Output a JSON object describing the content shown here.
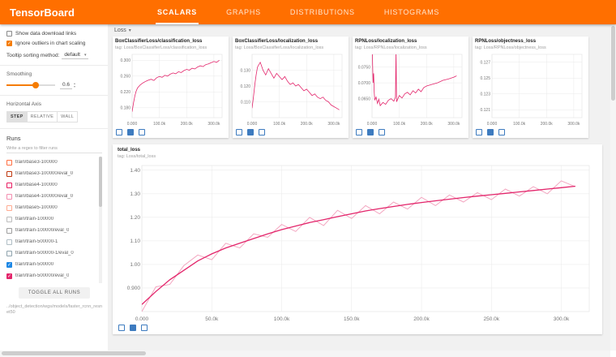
{
  "header": {
    "title": "TensorBoard",
    "tabs": [
      {
        "label": "SCALARS",
        "active": true
      },
      {
        "label": "GRAPHS",
        "active": false
      },
      {
        "label": "DISTRIBUTIONS",
        "active": false
      },
      {
        "label": "HISTOGRAMS",
        "active": false
      }
    ]
  },
  "sidebar": {
    "checkboxes": [
      {
        "label": "Show data download links",
        "checked": false
      },
      {
        "label": "Ignore outliers in chart scaling",
        "checked": true
      }
    ],
    "tooltip_sorting": {
      "label": "Tooltip sorting method:",
      "value": "default"
    },
    "smoothing": {
      "label": "Smoothing",
      "value": "0.6"
    },
    "horizontal_axis": {
      "label": "Horizontal Axis",
      "options": [
        "STEP",
        "RELATIVE",
        "WALL"
      ],
      "selected": "STEP"
    },
    "runs": {
      "label": "Runs",
      "filter_placeholder": "Write a regex to filter runs",
      "toggle_all_label": "TOGGLE ALL RUNS",
      "items": [
        {
          "label": "train/base3-100000",
          "checked": false,
          "color": "#ff7043"
        },
        {
          "label": "train/base3-100000/eval_0",
          "checked": false,
          "color": "#bf360c"
        },
        {
          "label": "train/base4-100000",
          "checked": false,
          "color": "#e91e63"
        },
        {
          "label": "train/base4-100000/eval_0",
          "checked": false,
          "color": "#f48fb1"
        },
        {
          "label": "train/base5-100000",
          "checked": false,
          "color": "#ffab91"
        },
        {
          "label": "train/train-100000",
          "checked": false,
          "color": "#bdbdbd"
        },
        {
          "label": "train/train-100000/eval_0",
          "checked": false,
          "color": "#9e9e9e"
        },
        {
          "label": "train/train-500000-1",
          "checked": false,
          "color": "#b0bec5"
        },
        {
          "label": "train/train-500000-1/eval_0",
          "checked": false,
          "color": "#90a4ae"
        },
        {
          "label": "train/train-500000",
          "checked": true,
          "color": "#1e88e5"
        },
        {
          "label": "train/train-500000/eval_0",
          "checked": true,
          "color": "#e3256b"
        }
      ]
    },
    "footer": "../object_detection/wgs/models/faster_rcnn_resnet50"
  },
  "main": {
    "group_label": "Loss",
    "chart_icons": [
      "fullscreen-icon",
      "log-y-axis-icon",
      "pin-icon"
    ]
  },
  "icons": {
    "dropdown_caret": "▾",
    "group_caret": "▾",
    "spinner_up": "▴",
    "spinner_down": "▾",
    "check": "✓"
  },
  "colors": {
    "accent": "#ff6f00",
    "line": "#e3256b",
    "line_raw": "#f3a6c0",
    "icon_blue": "#3d7bbf"
  },
  "chart_data": [
    {
      "size": "small",
      "type": "line",
      "title": "BoxClassifierLoss/classification_loss",
      "tag": "tag: Loss/BoxClassifierLoss/classification_loss",
      "xlim": [
        0,
        330000
      ],
      "ylim": [
        0.155,
        0.315
      ],
      "xticks": [
        {
          "v": 0,
          "l": "0.000"
        },
        {
          "v": 100000,
          "l": "100.0k"
        },
        {
          "v": 200000,
          "l": "200.0k"
        },
        {
          "v": 300000,
          "l": "300.0k"
        }
      ],
      "yticks": [
        {
          "v": 0.18,
          "l": "0.180"
        },
        {
          "v": 0.22,
          "l": "0.220"
        },
        {
          "v": 0.26,
          "l": "0.260"
        },
        {
          "v": 0.3,
          "l": "0.300"
        }
      ],
      "series": [
        {
          "name": "train/train-500000/eval_0",
          "color": "#e3256b",
          "width": 0.8,
          "x": [
            0,
            5000,
            10000,
            15000,
            20000,
            30000,
            40000,
            50000,
            60000,
            70000,
            80000,
            90000,
            100000,
            110000,
            120000,
            130000,
            140000,
            150000,
            160000,
            170000,
            180000,
            190000,
            200000,
            210000,
            220000,
            230000,
            240000,
            250000,
            260000,
            270000,
            280000,
            290000,
            300000,
            310000,
            320000
          ],
          "y": [
            0.17,
            0.192,
            0.21,
            0.222,
            0.23,
            0.238,
            0.243,
            0.247,
            0.25,
            0.252,
            0.249,
            0.256,
            0.259,
            0.257,
            0.262,
            0.26,
            0.265,
            0.268,
            0.266,
            0.271,
            0.269,
            0.274,
            0.277,
            0.275,
            0.28,
            0.278,
            0.283,
            0.286,
            0.284,
            0.289,
            0.291,
            0.294,
            0.297,
            0.295,
            0.3
          ]
        }
      ]
    },
    {
      "size": "small",
      "type": "line",
      "title": "BoxClassifierLoss/localization_loss",
      "tag": "tag: Loss/BoxClassifierLoss/localization_loss",
      "xlim": [
        0,
        330000
      ],
      "ylim": [
        0.1,
        0.14
      ],
      "xticks": [
        {
          "v": 0,
          "l": "0.000"
        },
        {
          "v": 100000,
          "l": "100.0k"
        },
        {
          "v": 200000,
          "l": "200.0k"
        },
        {
          "v": 300000,
          "l": "300.0k"
        }
      ],
      "yticks": [
        {
          "v": 0.11,
          "l": "0.110"
        },
        {
          "v": 0.12,
          "l": "0.120"
        },
        {
          "v": 0.13,
          "l": "0.130"
        }
      ],
      "series": [
        {
          "name": "train/train-500000/eval_0",
          "color": "#e3256b",
          "width": 0.8,
          "x": [
            0,
            5000,
            10000,
            15000,
            20000,
            30000,
            40000,
            50000,
            60000,
            70000,
            80000,
            90000,
            100000,
            110000,
            120000,
            130000,
            140000,
            150000,
            160000,
            170000,
            180000,
            190000,
            200000,
            210000,
            220000,
            230000,
            240000,
            250000,
            260000,
            270000,
            280000,
            290000,
            300000,
            310000,
            320000
          ],
          "y": [
            0.106,
            0.113,
            0.121,
            0.127,
            0.132,
            0.135,
            0.13,
            0.127,
            0.131,
            0.128,
            0.125,
            0.128,
            0.126,
            0.124,
            0.126,
            0.123,
            0.121,
            0.122,
            0.12,
            0.121,
            0.119,
            0.117,
            0.118,
            0.116,
            0.114,
            0.115,
            0.113,
            0.112,
            0.113,
            0.111,
            0.11,
            0.108,
            0.107,
            0.106,
            0.105
          ]
        }
      ]
    },
    {
      "size": "small",
      "type": "line",
      "title": "RPNLoss/localization_loss",
      "tag": "tag: Loss/RPNLoss/localization_loss",
      "xlim": [
        0,
        330000
      ],
      "ylim": [
        0.059,
        0.079
      ],
      "xticks": [
        {
          "v": 0,
          "l": "0.000"
        },
        {
          "v": 100000,
          "l": "100.0k"
        },
        {
          "v": 200000,
          "l": "200.0k"
        },
        {
          "v": 300000,
          "l": "300.0k"
        }
      ],
      "yticks": [
        {
          "v": 0.065,
          "l": "0.0650"
        },
        {
          "v": 0.07,
          "l": "0.0700"
        },
        {
          "v": 0.075,
          "l": "0.0750"
        }
      ],
      "series": [
        {
          "name": "train/train-500000/eval_0",
          "color": "#e3256b",
          "width": 0.8,
          "x": [
            0,
            2000,
            4000,
            6000,
            8000,
            10000,
            15000,
            20000,
            25000,
            30000,
            40000,
            50000,
            60000,
            70000,
            80000,
            86000,
            88000,
            90000,
            100000,
            110000,
            120000,
            130000,
            140000,
            150000,
            160000,
            170000,
            180000,
            190000,
            200000,
            220000,
            240000,
            260000,
            280000,
            300000,
            310000
          ],
          "y": [
            0.088,
            0.076,
            0.07,
            0.073,
            0.067,
            0.0645,
            0.0655,
            0.0635,
            0.0648,
            0.0628,
            0.0638,
            0.0632,
            0.0645,
            0.065,
            0.0642,
            0.0655,
            0.08,
            0.064,
            0.066,
            0.0652,
            0.0665,
            0.067,
            0.0662,
            0.0675,
            0.0668,
            0.068,
            0.0672,
            0.0685,
            0.069,
            0.0695,
            0.07,
            0.0708,
            0.0712,
            0.0718,
            0.0722
          ]
        }
      ]
    },
    {
      "size": "small",
      "type": "line",
      "title": "RPNLoss/objectness_loss",
      "tag": "tag: Loss/RPNLoss/objectness_loss",
      "xlim": [
        0,
        330000
      ],
      "ylim": [
        0.12,
        0.128
      ],
      "xticks": [
        {
          "v": 0,
          "l": "0.000"
        },
        {
          "v": 100000,
          "l": "100.0k"
        },
        {
          "v": 200000,
          "l": "200.0k"
        },
        {
          "v": 300000,
          "l": "300.0k"
        }
      ],
      "yticks": [
        {
          "v": 0.121,
          "l": "0.121"
        },
        {
          "v": 0.123,
          "l": "0.123"
        },
        {
          "v": 0.125,
          "l": "0.125"
        },
        {
          "v": 0.127,
          "l": "0.127"
        }
      ],
      "series": []
    },
    {
      "size": "big",
      "type": "line",
      "title": "total_loss",
      "tag": "tag: Loss/total_loss",
      "xlim": [
        0,
        320000
      ],
      "ylim": [
        0.8,
        1.42
      ],
      "xticks": [
        {
          "v": 0,
          "l": "0.000"
        },
        {
          "v": 50000,
          "l": "50.0k"
        },
        {
          "v": 100000,
          "l": "100.0k"
        },
        {
          "v": 150000,
          "l": "150.0k"
        },
        {
          "v": 200000,
          "l": "200.0k"
        },
        {
          "v": 250000,
          "l": "250.0k"
        },
        {
          "v": 300000,
          "l": "300.0k"
        }
      ],
      "yticks": [
        {
          "v": 0.9,
          "l": "0.900"
        },
        {
          "v": 1.0,
          "l": "1.00"
        },
        {
          "v": 1.1,
          "l": "1.10"
        },
        {
          "v": 1.2,
          "l": "1.20"
        },
        {
          "v": 1.3,
          "l": "1.30"
        },
        {
          "v": 1.4,
          "l": "1.40"
        }
      ],
      "series": [
        {
          "name": "train/train-500000/eval_0 (raw)",
          "color": "#f3a6c0",
          "width": 1,
          "x": [
            0,
            10000,
            20000,
            30000,
            40000,
            50000,
            60000,
            70000,
            80000,
            90000,
            100000,
            110000,
            120000,
            130000,
            140000,
            150000,
            160000,
            170000,
            180000,
            190000,
            200000,
            210000,
            220000,
            230000,
            240000,
            250000,
            260000,
            270000,
            280000,
            290000,
            300000,
            310000
          ],
          "y": [
            0.8,
            0.905,
            0.915,
            0.995,
            1.04,
            1.02,
            1.09,
            1.07,
            1.13,
            1.115,
            1.17,
            1.14,
            1.2,
            1.165,
            1.23,
            1.195,
            1.25,
            1.215,
            1.265,
            1.235,
            1.285,
            1.25,
            1.295,
            1.265,
            1.305,
            1.275,
            1.32,
            1.29,
            1.33,
            1.3,
            1.355,
            1.33
          ]
        },
        {
          "name": "train/train-500000/eval_0 (smoothed)",
          "color": "#e3256b",
          "width": 1.3,
          "x": [
            0,
            10000,
            20000,
            30000,
            40000,
            50000,
            60000,
            70000,
            80000,
            90000,
            100000,
            110000,
            120000,
            130000,
            140000,
            150000,
            160000,
            170000,
            180000,
            190000,
            200000,
            210000,
            220000,
            230000,
            240000,
            250000,
            260000,
            270000,
            280000,
            290000,
            300000,
            310000
          ],
          "y": [
            0.83,
            0.885,
            0.935,
            0.975,
            1.015,
            1.045,
            1.07,
            1.09,
            1.11,
            1.13,
            1.148,
            1.163,
            1.178,
            1.19,
            1.203,
            1.215,
            1.227,
            1.237,
            1.246,
            1.255,
            1.263,
            1.27,
            1.277,
            1.284,
            1.29,
            1.296,
            1.302,
            1.308,
            1.314,
            1.32,
            1.326,
            1.332
          ]
        }
      ]
    }
  ]
}
